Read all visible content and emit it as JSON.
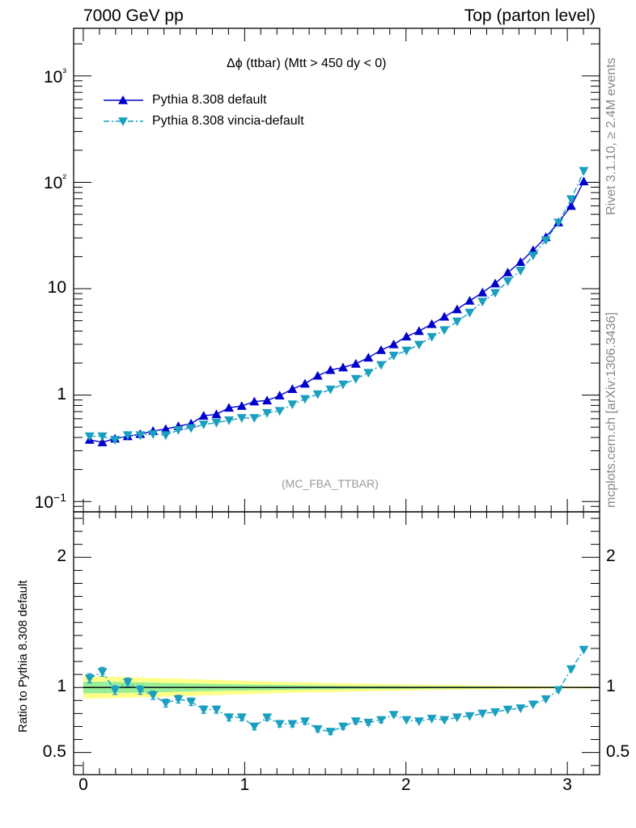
{
  "header": {
    "left": "7000 GeV pp",
    "right": "Top (parton level)"
  },
  "side_labels": {
    "rivet": "Rivet 3.1.10, ≥ 2.4M events",
    "mcplots": "mcplots.cern.ch [arXiv:1306.3436]"
  },
  "chart_data": {
    "type": "line",
    "title": "Δϕ (ttbar) (Mtt > 450 dy < 0)",
    "watermark": "(MC_FBA_TTBAR)",
    "ratio_ylabel": "Ratio to Pythia 8.308 default",
    "legend_position": "top-left",
    "x_range": [
      -0.06,
      3.2
    ],
    "main_y_log": true,
    "main_y_range": [
      0.08,
      2800
    ],
    "ratio_y_range": [
      0.33,
      2.35
    ],
    "x_ticks": [
      "0",
      "1",
      "2",
      "3"
    ],
    "main_y_ticks": [
      "10−1",
      "1",
      "10",
      "10²",
      "10³"
    ],
    "ratio_y_ticks": [
      "0.5",
      "1",
      "2"
    ],
    "x": [
      0.039,
      0.118,
      0.196,
      0.275,
      0.353,
      0.432,
      0.511,
      0.589,
      0.668,
      0.746,
      0.825,
      0.903,
      0.982,
      1.06,
      1.139,
      1.217,
      1.296,
      1.374,
      1.453,
      1.532,
      1.61,
      1.689,
      1.767,
      1.846,
      1.924,
      2.003,
      2.081,
      2.16,
      2.238,
      2.317,
      2.395,
      2.474,
      2.553,
      2.631,
      2.71,
      2.788,
      2.867,
      2.945,
      3.024,
      3.102
    ],
    "series": [
      {
        "name": "Pythia 8.308 default",
        "color": "#0000cc",
        "marker": "triangle-up",
        "values": [
          0.38,
          0.36,
          0.39,
          0.41,
          0.43,
          0.46,
          0.48,
          0.51,
          0.54,
          0.64,
          0.66,
          0.76,
          0.79,
          0.87,
          0.89,
          0.99,
          1.14,
          1.28,
          1.52,
          1.72,
          1.82,
          1.97,
          2.25,
          2.65,
          3.0,
          3.55,
          4.0,
          4.65,
          5.45,
          6.4,
          7.7,
          9.2,
          11.2,
          14.2,
          17.8,
          23.0,
          30.5,
          42.0,
          60.0,
          102.0
        ]
      },
      {
        "name": "Pythia 8.308 vincia-default",
        "color": "#1a9fc0",
        "marker": "triangle-down",
        "values": [
          0.41,
          0.41,
          0.38,
          0.42,
          0.42,
          0.43,
          0.42,
          0.47,
          0.49,
          0.53,
          0.55,
          0.58,
          0.61,
          0.61,
          0.68,
          0.71,
          0.82,
          0.92,
          1.02,
          1.13,
          1.26,
          1.42,
          1.62,
          1.92,
          2.35,
          2.62,
          2.98,
          3.52,
          4.08,
          4.92,
          5.95,
          7.55,
          9.15,
          11.75,
          14.75,
          20.5,
          28.6,
          41.8,
          69.5,
          128.0
        ]
      }
    ],
    "ratio": {
      "values": [
        1.07,
        1.12,
        0.98,
        1.04,
        0.98,
        0.94,
        0.88,
        0.91,
        0.89,
        0.83,
        0.83,
        0.77,
        0.77,
        0.7,
        0.77,
        0.72,
        0.72,
        0.74,
        0.68,
        0.66,
        0.7,
        0.74,
        0.73,
        0.75,
        0.79,
        0.75,
        0.74,
        0.76,
        0.75,
        0.77,
        0.78,
        0.8,
        0.81,
        0.83,
        0.84,
        0.87,
        0.91,
        0.98,
        1.14,
        1.29
      ],
      "band_inner_half": [
        0.045,
        0.045,
        0.043,
        0.041,
        0.039,
        0.037,
        0.035,
        0.033,
        0.031,
        0.029,
        0.027,
        0.025,
        0.024,
        0.022,
        0.021,
        0.019,
        0.018,
        0.017,
        0.016,
        0.015,
        0.014,
        0.013,
        0.012,
        0.012,
        0.011,
        0.01,
        0.01,
        0.009,
        0.009,
        0.008,
        0.008,
        0.007,
        0.007,
        0.006,
        0.006,
        0.006,
        0.005,
        0.005,
        0.005,
        0.005
      ],
      "band_outer_half": [
        0.085,
        0.084,
        0.082,
        0.079,
        0.076,
        0.073,
        0.07,
        0.067,
        0.064,
        0.061,
        0.058,
        0.055,
        0.052,
        0.049,
        0.046,
        0.043,
        0.041,
        0.039,
        0.037,
        0.035,
        0.033,
        0.031,
        0.029,
        0.027,
        0.025,
        0.023,
        0.022,
        0.02,
        0.019,
        0.018,
        0.016,
        0.015,
        0.014,
        0.013,
        0.012,
        0.011,
        0.01,
        0.009,
        0.008,
        0.008
      ],
      "band_inner_color": "#99ee99",
      "band_outer_color": "#ffff88"
    }
  }
}
